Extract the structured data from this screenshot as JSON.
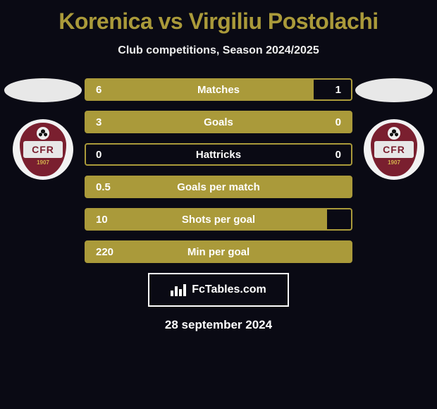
{
  "title_color": "#aa9a3a",
  "title": "Korenica vs Virgiliu Postolachi",
  "subtitle": "Club competitions, Season 2024/2025",
  "attribution": "FcTables.com",
  "date": "28 september 2024",
  "side": {
    "oval_color": "#e8e8e8",
    "logo_text": "CFR",
    "logo_year": "1907",
    "crest_color": "#7a1f2f"
  },
  "bar_style": {
    "border_color": "#aa9a3a",
    "fill_color": "#aa9a3a",
    "height": 32,
    "font_size": 15
  },
  "bars": [
    {
      "label": "Matches",
      "left": "6",
      "right": "1",
      "fill_pct": 86
    },
    {
      "label": "Goals",
      "left": "3",
      "right": "0",
      "fill_pct": 100
    },
    {
      "label": "Hattricks",
      "left": "0",
      "right": "0",
      "fill_pct": 0
    },
    {
      "label": "Goals per match",
      "left": "0.5",
      "right": "",
      "fill_pct": 100
    },
    {
      "label": "Shots per goal",
      "left": "10",
      "right": "",
      "fill_pct": 91
    },
    {
      "label": "Min per goal",
      "left": "220",
      "right": "",
      "fill_pct": 100
    }
  ]
}
